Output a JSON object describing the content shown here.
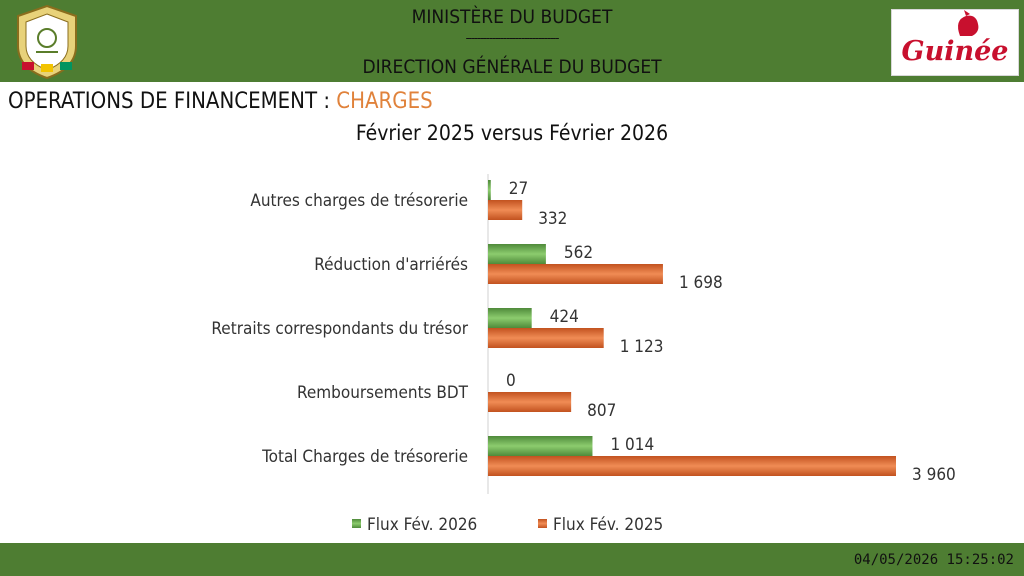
{
  "header": {
    "line1": "MINISTÈRE DU BUDGET",
    "separator": "--------------------------------",
    "line2": "DIRECTION GÉNÉRALE DU BUDGET"
  },
  "logos": {
    "emblem_text": "TRAVAIL  JUSTICE  SOLIDARITÉ",
    "brand_text": "Guinée"
  },
  "title_main": "OPERATIONS DE FINANCEMENT : ",
  "title_accent": "CHARGES",
  "subtitle": "Février 2025 versus Février 2026",
  "colors": {
    "series_2026": "#6aa84f",
    "series_2025": "#d9652b",
    "bar_green": "#4e7d32",
    "accent_title": "#e0823b"
  },
  "chart_data": {
    "type": "bar",
    "orientation": "horizontal",
    "categories": [
      "Autres charges de trésorerie",
      "Réduction d'arriérés",
      "Retraits correspondants du trésor",
      "Remboursements BDT",
      "Total Charges de trésorerie"
    ],
    "series": [
      {
        "name": "Flux Fév. 2026",
        "values": [
          27,
          562,
          424,
          0,
          1014
        ],
        "labels": [
          "27",
          "562",
          "424",
          "0",
          "1 014"
        ]
      },
      {
        "name": "Flux Fév. 2025",
        "values": [
          332,
          1698,
          1123,
          807,
          3960
        ],
        "labels": [
          "332",
          "1 698",
          "1 123",
          "807",
          "3 960"
        ]
      }
    ],
    "legend_position": "bottom",
    "grid": false
  },
  "footer": {
    "timestamp": "04/05/2026 15:25:02"
  }
}
